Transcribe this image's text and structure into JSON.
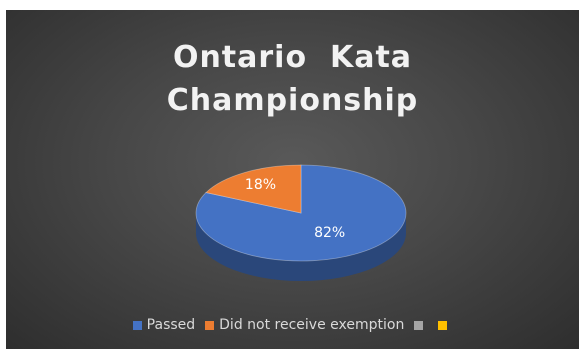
{
  "chart_data": {
    "type": "pie",
    "title": [
      "Ontario  Kata",
      "Championship"
    ],
    "slices": [
      {
        "name": "Passed",
        "value": 82,
        "label": "82%",
        "color": "#4472c4"
      },
      {
        "name": "Did not receive exemption",
        "value": 18,
        "label": "18%",
        "color": "#ed7d31"
      },
      {
        "name": "",
        "value": 0,
        "label": "",
        "color": "#a5a5a5"
      },
      {
        "name": "",
        "value": 0,
        "label": "",
        "color": "#ffc000"
      }
    ],
    "three_d": true,
    "legend_position": "bottom"
  }
}
